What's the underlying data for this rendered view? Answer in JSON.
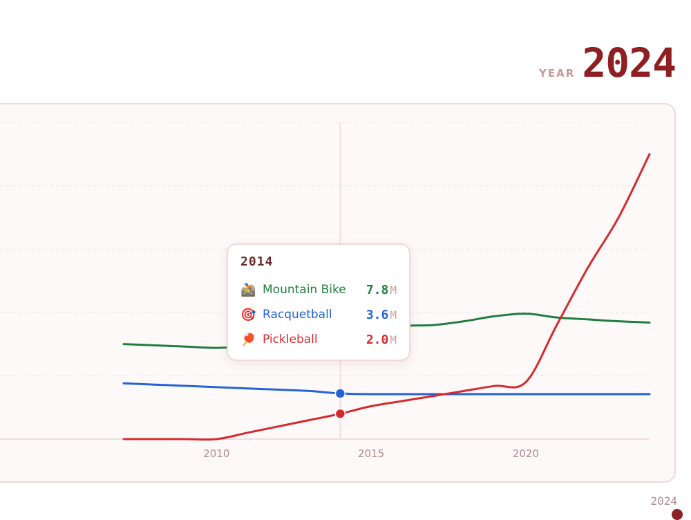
{
  "header": {
    "year_label": "YEAR",
    "year_value": "2024"
  },
  "chart_data": {
    "type": "line",
    "x": [
      2007,
      2008,
      2009,
      2010,
      2011,
      2012,
      2013,
      2014,
      2015,
      2016,
      2017,
      2018,
      2019,
      2020,
      2021,
      2022,
      2023,
      2024
    ],
    "series": [
      {
        "name": "Mountain Bike",
        "icon": "🚵",
        "color": "#1e7e3e",
        "values": [
          7.5,
          7.4,
          7.3,
          7.2,
          7.35,
          7.5,
          7.65,
          7.8,
          8.3,
          8.9,
          9.0,
          9.3,
          9.7,
          9.9,
          9.6,
          9.45,
          9.3,
          9.2
        ]
      },
      {
        "name": "Racquetball",
        "icon": "🎯",
        "color": "#2563d8",
        "values": [
          4.4,
          4.3,
          4.2,
          4.1,
          4.0,
          3.9,
          3.8,
          3.6,
          3.55,
          3.55,
          3.55,
          3.55,
          3.55,
          3.55,
          3.55,
          3.55,
          3.55,
          3.55
        ]
      },
      {
        "name": "Pickleball",
        "icon": "🏓",
        "color": "#d42a2e",
        "values": [
          0.0,
          0.0,
          0.0,
          0.0,
          0.5,
          1.0,
          1.5,
          2.0,
          2.6,
          3.0,
          3.4,
          3.8,
          4.2,
          4.5,
          9.0,
          13.5,
          17.5,
          22.5
        ]
      }
    ],
    "x_ticks": [
      "2010",
      "2015",
      "2020"
    ],
    "x_range": [
      2003,
      2024
    ],
    "y_range": [
      0,
      25
    ],
    "grid": true
  },
  "tooltip": {
    "year": "2014",
    "rows": [
      {
        "icon": "🚵",
        "name": "Mountain Bike",
        "value": "7.8",
        "unit": "M",
        "color": "#1e7e3e"
      },
      {
        "icon": "🎯",
        "name": "Racquetball",
        "value": "3.6",
        "unit": "M",
        "color": "#2563d8"
      },
      {
        "icon": "🏓",
        "name": "Pickleball",
        "value": "2.0",
        "unit": "M",
        "color": "#d42a2e"
      }
    ]
  },
  "slider": {
    "end_label": "2024"
  }
}
